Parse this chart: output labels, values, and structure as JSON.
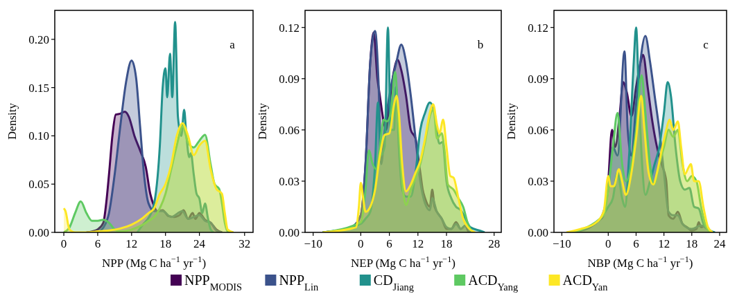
{
  "chart_data": [
    {
      "type": "area",
      "xlabel": "NPP (Mg C ha$^{−1}$ yr$^{−1}$)",
      "ylabel": "Density",
      "annotations": [
        "a"
      ],
      "xlim": [
        -1.6,
        33.5
      ],
      "ylim": [
        0,
        0.23
      ],
      "xticks": [
        0,
        6,
        12,
        18,
        24,
        32
      ],
      "yticks": [
        {
          "value": 0,
          "label": "0.00"
        },
        {
          "value": 0.05,
          "label": "0.05"
        },
        {
          "value": 0.1,
          "label": "0.10"
        },
        {
          "value": 0.15,
          "label": "0.15"
        },
        {
          "value": 0.2,
          "label": "0.20"
        }
      ],
      "grid": false,
      "legend": "bottom",
      "series": [
        {
          "name": "NPP$_{MODIS}$",
          "color": "#440154",
          "x": [
            4,
            5,
            6,
            7,
            7.5,
            8,
            8.6,
            9.2,
            10,
            10.8,
            11.5,
            12.5,
            13.5,
            14.5,
            15.3,
            16,
            16.5,
            17.5,
            18.5,
            19.5,
            20.5,
            21.2,
            22,
            22.8,
            23.3,
            24,
            25,
            26,
            27,
            28
          ],
          "values": [
            0,
            0.001,
            0.003,
            0.01,
            0.03,
            0.06,
            0.1,
            0.122,
            0.123,
            0.125,
            0.12,
            0.1,
            0.085,
            0.068,
            0.04,
            0.027,
            0.022,
            0.023,
            0.017,
            0.016,
            0.018,
            0.023,
            0.014,
            0.02,
            0.014,
            0.02,
            0.013,
            0.01,
            0.003,
            0
          ]
        },
        {
          "name": "NPP$_{Lin}$",
          "color": "#3b528b",
          "x": [
            6,
            7,
            8,
            9,
            10,
            11,
            12,
            12.8,
            13.5,
            14.2,
            15,
            16,
            17.5,
            19,
            21,
            22,
            24,
            25,
            26,
            27,
            28
          ],
          "values": [
            0,
            0.005,
            0.02,
            0.06,
            0.11,
            0.155,
            0.178,
            0.16,
            0.11,
            0.06,
            0.03,
            0.022,
            0.022,
            0.016,
            0.022,
            0.014,
            0.018,
            0.012,
            0.01,
            0.002,
            0
          ]
        },
        {
          "name": "CD$_{Jiang}$",
          "color": "#21918c",
          "x": [
            13,
            14,
            15,
            16,
            17,
            17.5,
            18,
            18.3,
            18.8,
            19.2,
            19.7,
            20.2,
            20.8,
            21.3,
            21.7,
            22.2,
            22.5,
            23,
            23.5,
            24,
            24.5,
            25,
            25.5,
            26,
            26.5
          ],
          "values": [
            0,
            0.008,
            0.015,
            0.03,
            0.09,
            0.15,
            0.17,
            0.14,
            0.185,
            0.14,
            0.218,
            0.12,
            0.1,
            0.127,
            0.1,
            0.078,
            0.082,
            0.06,
            0.04,
            0.035,
            0.02,
            0.03,
            0.015,
            0.003,
            0
          ]
        },
        {
          "name": "ACD$_{Yang}$",
          "color": "#5ec962",
          "x": [
            0,
            1,
            2,
            3,
            4,
            5,
            6,
            7,
            8,
            9,
            10,
            12,
            14,
            15,
            16,
            17,
            18,
            19,
            20,
            21,
            22,
            23,
            24,
            25,
            26,
            26.7,
            27.5,
            28,
            28.5,
            29,
            30
          ],
          "values": [
            0,
            0.005,
            0.02,
            0.032,
            0.02,
            0.012,
            0.012,
            0.013,
            0.01,
            0.003,
            0.001,
            0.003,
            0.008,
            0.012,
            0.016,
            0.025,
            0.04,
            0.065,
            0.09,
            0.11,
            0.093,
            0.088,
            0.095,
            0.101,
            0.07,
            0.05,
            0.045,
            0.03,
            0.01,
            0.001,
            0
          ]
        },
        {
          "name": "ACD$_{Yan}$",
          "color": "#fde725",
          "x": [
            0,
            0.3,
            1,
            2,
            4,
            6,
            8,
            10,
            12,
            14,
            15,
            16,
            17,
            18,
            19,
            20,
            21,
            22,
            23,
            24,
            25,
            26,
            27,
            28,
            28.5,
            29,
            30
          ],
          "values": [
            0.025,
            0.022,
            0.003,
            0,
            0,
            0.001,
            0.002,
            0.004,
            0.008,
            0.015,
            0.02,
            0.025,
            0.04,
            0.05,
            0.07,
            0.1,
            0.113,
            0.1,
            0.08,
            0.09,
            0.095,
            0.065,
            0.045,
            0.04,
            0.02,
            0.003,
            0
          ]
        }
      ]
    },
    {
      "type": "area",
      "xlabel": "NEP (Mg C ha$^{−1}$ yr$^{−1}$)",
      "ylabel": "Density",
      "annotations": [
        "b"
      ],
      "xlim": [
        -11.7,
        29.5
      ],
      "ylim": [
        0,
        0.13
      ],
      "xticks": [
        {
          "value": -10,
          "label": "−10"
        },
        0,
        6,
        12,
        18,
        28
      ],
      "yticks": [
        {
          "value": 0,
          "label": "0.00"
        },
        {
          "value": 0.03,
          "label": "0.03"
        },
        {
          "value": 0.06,
          "label": "0.06"
        },
        {
          "value": 0.09,
          "label": "0.09"
        },
        {
          "value": 0.12,
          "label": "0.12"
        }
      ],
      "grid": false,
      "series": [
        {
          "color": "#440154",
          "x": [
            -8,
            -2,
            0,
            1,
            2,
            2.7,
            3.5,
            4,
            4.8,
            5.3,
            6,
            7,
            7.7,
            8.5,
            9.5,
            10.5,
            11.5,
            12,
            12.5,
            13,
            13.5,
            14.5,
            15,
            15.5,
            16.5,
            17,
            18,
            19,
            20,
            21,
            22,
            22.5,
            23
          ],
          "values": [
            0,
            0.003,
            0.01,
            0.04,
            0.1,
            0.117,
            0.09,
            0.08,
            0.065,
            0.06,
            0.075,
            0.095,
            0.101,
            0.095,
            0.08,
            0.06,
            0.055,
            0.045,
            0.035,
            0.025,
            0.02,
            0.015,
            0.025,
            0.015,
            0.01,
            0.008,
            0.002,
            0.002,
            0.006,
            0.002,
            0.004,
            0.001,
            0
          ]
        },
        {
          "color": "#3b528b",
          "x": [
            -8,
            -2,
            0,
            1,
            2,
            3,
            3.7,
            4.3,
            5,
            6,
            7.5,
            8.5,
            9.5,
            10.5,
            11.5,
            12.5,
            13.5,
            14.5,
            15,
            16,
            17,
            18,
            19,
            20,
            21,
            22,
            23
          ],
          "values": [
            0,
            0.003,
            0.01,
            0.04,
            0.1,
            0.118,
            0.09,
            0.04,
            0.06,
            0.08,
            0.1,
            0.11,
            0.1,
            0.08,
            0.055,
            0.03,
            0.017,
            0.013,
            0.02,
            0.012,
            0.008,
            0.003,
            0.002,
            0.005,
            0.002,
            0.004,
            0
          ]
        },
        {
          "color": "#21918c",
          "x": [
            -8,
            0,
            1,
            2,
            3,
            3.6,
            4.2,
            5,
            5.7,
            6.3,
            7,
            7.4,
            8,
            8.7,
            9.5,
            10.5,
            11.5,
            12.5,
            13.5,
            14.5,
            15.5,
            16.5,
            17.2,
            18,
            19,
            20,
            21,
            22,
            23,
            25,
            26
          ],
          "values": [
            0,
            0.005,
            0.008,
            0.012,
            0.04,
            0.076,
            0.045,
            0.05,
            0.12,
            0.06,
            0.06,
            0.085,
            0.05,
            0.025,
            0.021,
            0.021,
            0.035,
            0.06,
            0.07,
            0.076,
            0.07,
            0.052,
            0.053,
            0.03,
            0.02,
            0.015,
            0.013,
            0.008,
            0.003,
            0.001,
            0
          ]
        },
        {
          "color": "#5ec962",
          "x": [
            -8,
            0,
            1,
            1.7,
            2.5,
            3.3,
            4,
            4.8,
            5.5,
            6.3,
            7.2,
            8,
            8.7,
            9.5,
            10.5,
            11.5,
            12.5,
            13.5,
            14.5,
            15.3,
            16,
            17,
            17.5,
            18.3,
            19.5,
            20.5,
            21.5,
            22.5,
            23.5
          ],
          "values": [
            0,
            0.006,
            0.025,
            0.048,
            0.04,
            0.037,
            0.05,
            0.066,
            0.065,
            0.07,
            0.094,
            0.06,
            0.03,
            0.016,
            0.025,
            0.032,
            0.04,
            0.053,
            0.068,
            0.072,
            0.055,
            0.058,
            0.05,
            0.028,
            0.025,
            0.02,
            0.015,
            0.005,
            0
          ]
        },
        {
          "color": "#fde725",
          "x": [
            -8,
            -1,
            -0.4,
            0,
            0.5,
            1,
            2,
            3,
            4,
            5,
            6,
            7,
            7.5,
            8,
            8.7,
            9.5,
            10.5,
            11.5,
            12.5,
            13.5,
            14.5,
            15.2,
            16,
            16.5,
            17.3,
            18,
            18.8,
            19.5,
            20.5,
            21.5,
            22.5,
            24
          ],
          "values": [
            0,
            0.003,
            0.015,
            0.029,
            0.02,
            0.012,
            0.015,
            0.025,
            0.045,
            0.057,
            0.058,
            0.075,
            0.08,
            0.07,
            0.04,
            0.024,
            0.028,
            0.035,
            0.042,
            0.055,
            0.07,
            0.075,
            0.063,
            0.058,
            0.066,
            0.05,
            0.033,
            0.032,
            0.02,
            0.008,
            0.003,
            0
          ]
        }
      ]
    },
    {
      "type": "area",
      "xlabel": "NBP (Mg C ha$^{−1}$ yr$^{−1}$)",
      "ylabel": "Density",
      "annotations": [
        "c"
      ],
      "xlim": [
        -11.7,
        25.5
      ],
      "ylim": [
        0,
        0.13
      ],
      "xticks": [
        {
          "value": -10,
          "label": "−10"
        },
        0,
        6,
        12,
        18,
        24
      ],
      "yticks": [
        {
          "value": 0,
          "label": "0.00"
        },
        {
          "value": 0.03,
          "label": "0.03"
        },
        {
          "value": 0.06,
          "label": "0.06"
        },
        {
          "value": 0.09,
          "label": "0.09"
        },
        {
          "value": 0.12,
          "label": "0.12"
        }
      ],
      "grid": false,
      "series": [
        {
          "color": "#440154",
          "x": [
            -8,
            -4,
            -2,
            -1,
            0,
            0.8,
            1.5,
            2.5,
            3.2,
            4,
            5,
            6,
            7,
            7.5,
            8.5,
            9.5,
            10.5,
            11.5,
            12.5,
            13,
            14,
            15,
            16,
            17,
            18,
            19,
            19.5,
            20,
            21,
            22
          ],
          "values": [
            0,
            0.003,
            0.007,
            0.01,
            0.03,
            0.06,
            0.05,
            0.07,
            0.088,
            0.082,
            0.068,
            0.085,
            0.1,
            0.104,
            0.085,
            0.065,
            0.05,
            0.04,
            0.03,
            0.01,
            0.008,
            0.012,
            0.005,
            0.003,
            0.001,
            0.002,
            0.006,
            0.003,
            0.004,
            0
          ]
        },
        {
          "color": "#3b528b",
          "x": [
            -8,
            -2,
            0,
            1,
            2,
            3.5,
            4.2,
            5,
            6,
            8,
            9,
            10,
            11,
            12,
            13,
            14,
            15,
            16,
            18,
            20,
            22
          ],
          "values": [
            0,
            0.007,
            0.025,
            0.05,
            0.045,
            0.106,
            0.06,
            0.045,
            0.075,
            0.115,
            0.1,
            0.08,
            0.06,
            0.035,
            0.012,
            0.01,
            0.01,
            0.005,
            0.002,
            0.004,
            0
          ]
        },
        {
          "color": "#21918c",
          "x": [
            -8,
            -2,
            0,
            1,
            2,
            3,
            3.6,
            4.5,
            5.5,
            6,
            6.6,
            7.3,
            8,
            9,
            10,
            11,
            12,
            12.8,
            13.5,
            14.5,
            15.5,
            16.5,
            17.5,
            18.5,
            19.5,
            20.5,
            22,
            23
          ],
          "values": [
            0,
            0.007,
            0.015,
            0.02,
            0.035,
            0.02,
            0.015,
            0.045,
            0.1,
            0.12,
            0.08,
            0.04,
            0.022,
            0.03,
            0.04,
            0.05,
            0.07,
            0.088,
            0.08,
            0.05,
            0.03,
            0.025,
            0.026,
            0.015,
            0.014,
            0.005,
            0.001,
            0
          ]
        },
        {
          "color": "#5ec962",
          "x": [
            -8,
            -1,
            0,
            1,
            2,
            3,
            3.8,
            5,
            6,
            7.2,
            8,
            9,
            9.8,
            11,
            12,
            13,
            14,
            15,
            16,
            17,
            18,
            19,
            20,
            21,
            22
          ],
          "values": [
            0,
            0.01,
            0.025,
            0.05,
            0.07,
            0.04,
            0.03,
            0.04,
            0.06,
            0.092,
            0.07,
            0.04,
            0.028,
            0.04,
            0.05,
            0.06,
            0.056,
            0.06,
            0.04,
            0.03,
            0.033,
            0.03,
            0.015,
            0.004,
            0
          ]
        },
        {
          "color": "#fde725",
          "x": [
            -9,
            -6,
            -3,
            -1,
            0,
            0.5,
            1.2,
            2.3,
            3,
            3.8,
            5,
            6,
            7.1,
            7.8,
            8.7,
            9.7,
            10.5,
            11.5,
            12.5,
            13.2,
            14,
            15,
            15.7,
            16.5,
            17.3,
            17.8,
            18.5,
            19.5,
            20.5,
            21.5,
            22.5
          ],
          "values": [
            0,
            0.002,
            0.005,
            0.012,
            0.033,
            0.027,
            0.027,
            0.037,
            0.03,
            0.022,
            0.035,
            0.055,
            0.08,
            0.06,
            0.035,
            0.028,
            0.035,
            0.048,
            0.06,
            0.066,
            0.06,
            0.065,
            0.05,
            0.034,
            0.038,
            0.04,
            0.03,
            0.03,
            0.015,
            0.003,
            0
          ]
        }
      ]
    }
  ]
}
